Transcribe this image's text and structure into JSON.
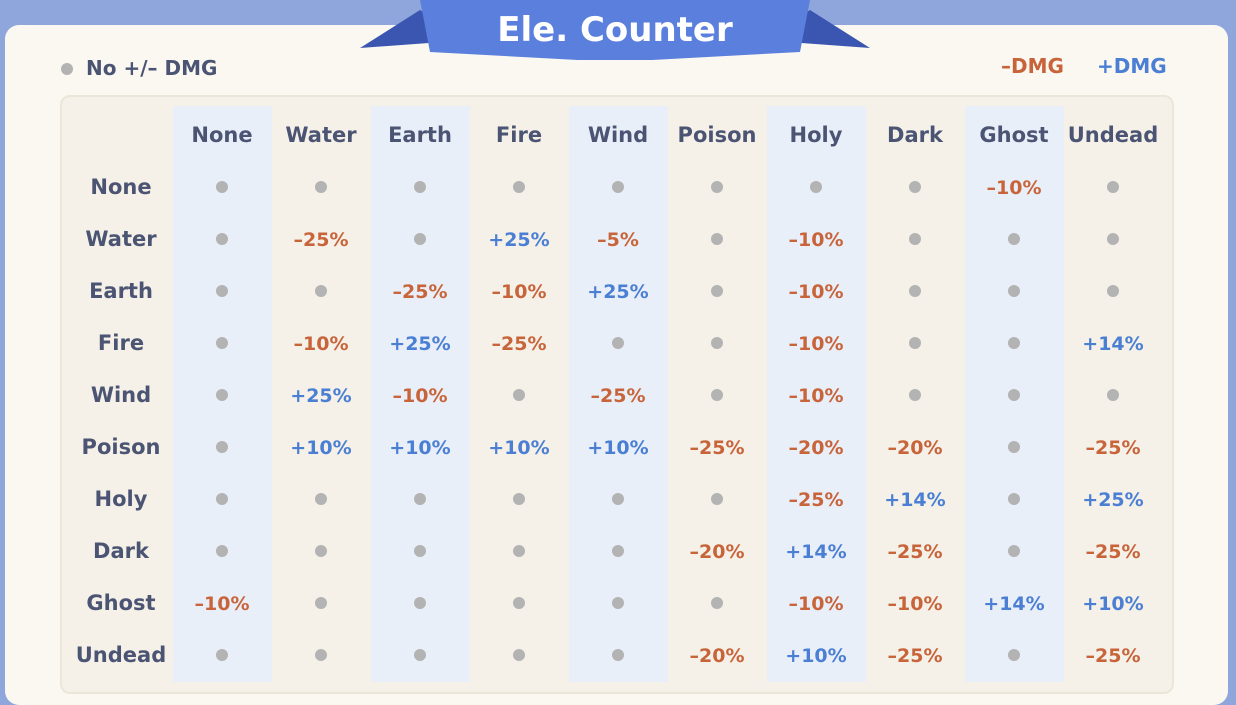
{
  "header": {
    "title": "Ele. Counter"
  },
  "legend": {
    "neutral": "No +/– DMG",
    "minus": "–DMG",
    "plus": "+DMG"
  },
  "table": {
    "columns": [
      "None",
      "Water",
      "Earth",
      "Fire",
      "Wind",
      "Poison",
      "Holy",
      "Dark",
      "Ghost",
      "Undead"
    ],
    "rows": [
      {
        "label": "None",
        "cells": [
          null,
          null,
          null,
          null,
          null,
          null,
          null,
          null,
          "–10%",
          null
        ]
      },
      {
        "label": "Water",
        "cells": [
          null,
          "–25%",
          null,
          "+25%",
          "–5%",
          null,
          "–10%",
          null,
          null,
          null
        ]
      },
      {
        "label": "Earth",
        "cells": [
          null,
          null,
          "–25%",
          "–10%",
          "+25%",
          null,
          "–10%",
          null,
          null,
          null
        ]
      },
      {
        "label": "Fire",
        "cells": [
          null,
          "–10%",
          "+25%",
          "–25%",
          null,
          null,
          "–10%",
          null,
          null,
          "+14%"
        ]
      },
      {
        "label": "Wind",
        "cells": [
          null,
          "+25%",
          "–10%",
          null,
          "–25%",
          null,
          "–10%",
          null,
          null,
          null
        ]
      },
      {
        "label": "Poison",
        "cells": [
          null,
          "+10%",
          "+10%",
          "+10%",
          "+10%",
          "–25%",
          "–20%",
          "–20%",
          null,
          "–25%"
        ]
      },
      {
        "label": "Holy",
        "cells": [
          null,
          null,
          null,
          null,
          null,
          null,
          "–25%",
          "+14%",
          null,
          "+25%"
        ]
      },
      {
        "label": "Dark",
        "cells": [
          null,
          null,
          null,
          null,
          null,
          "–20%",
          "+14%",
          "–25%",
          null,
          "–25%"
        ]
      },
      {
        "label": "Ghost",
        "cells": [
          "–10%",
          null,
          null,
          null,
          null,
          null,
          "–10%",
          "–10%",
          "+14%",
          "+10%"
        ]
      },
      {
        "label": "Undead",
        "cells": [
          null,
          null,
          null,
          null,
          null,
          "–20%",
          "+10%",
          "–25%",
          null,
          "–25%"
        ]
      }
    ]
  }
}
